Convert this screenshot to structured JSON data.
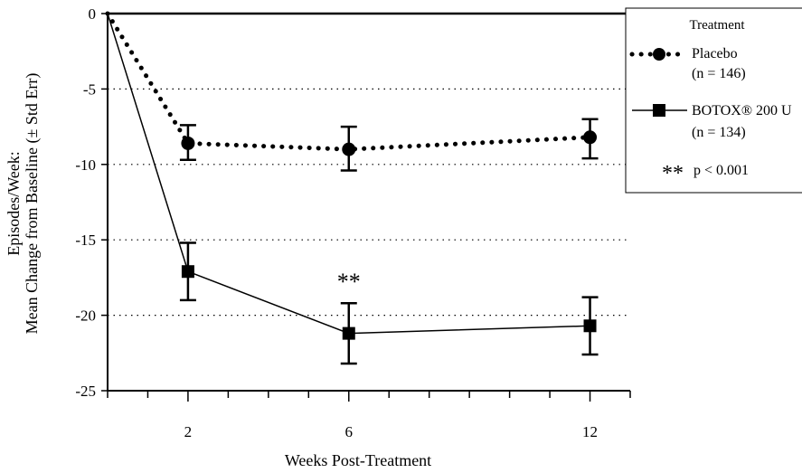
{
  "chart_data": {
    "type": "line",
    "xlabel": "Weeks Post-Treatment",
    "ylabel": [
      "Episodes/Week:",
      "Mean Change from Baseline (± Std Err)"
    ],
    "x_ticks": [
      2,
      6,
      12
    ],
    "y_ticks": [
      0,
      -5,
      -10,
      -15,
      -20,
      -25
    ],
    "xlim": [
      0,
      13
    ],
    "ylim": [
      -25,
      0
    ],
    "grid": "horizontal dotted at -5, -10, -15, -20",
    "series": [
      {
        "name": "Placebo",
        "n_label": "(n = 146)",
        "style": "dotted",
        "marker": "circle",
        "color": "#000000",
        "x": [
          0,
          2,
          6,
          12
        ],
        "y": [
          0,
          -8.6,
          -9.0,
          -8.2
        ],
        "err_low": [
          null,
          -9.7,
          -10.4,
          -9.6
        ],
        "err_high": [
          null,
          -7.4,
          -7.5,
          -7.0
        ]
      },
      {
        "name": "BOTOX® 200 U",
        "n_label": "(n = 134)",
        "style": "solid",
        "marker": "square",
        "color": "#000000",
        "x": [
          0,
          2,
          6,
          12
        ],
        "y": [
          0,
          -17.1,
          -21.2,
          -20.7
        ],
        "err_low": [
          null,
          -19.0,
          -23.2,
          -22.6
        ],
        "err_high": [
          null,
          -15.2,
          -19.2,
          -18.8
        ]
      }
    ],
    "annotations": [
      {
        "text": "**",
        "x": 6,
        "y": -18.3
      }
    ],
    "legend": {
      "title": "Treatment",
      "position": "top-right",
      "significance_marker": "**",
      "significance_text": "p < 0.001"
    }
  }
}
